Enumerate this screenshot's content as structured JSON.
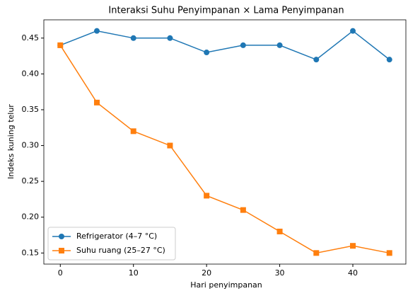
{
  "chart_data": {
    "type": "line",
    "title": "Interaksi Suhu Penyimpanan × Lama Penyimpanan",
    "x_label": "Hari penyimpanan",
    "y_label": "Indeks kuning telur",
    "x": [
      0,
      5,
      10,
      15,
      20,
      25,
      30,
      35,
      40,
      45
    ],
    "series": [
      {
        "name": "Refrigerator (4–7 °C)",
        "color": "#1f77b4",
        "marker": "circle",
        "values": [
          0.44,
          0.46,
          0.45,
          0.45,
          0.43,
          0.44,
          0.44,
          0.42,
          0.46,
          0.42
        ]
      },
      {
        "name": "Suhu ruang (25–27 °C)",
        "color": "#ff7f0e",
        "marker": "square",
        "values": [
          0.44,
          0.36,
          0.32,
          0.3,
          0.23,
          0.21,
          0.18,
          0.15,
          0.16,
          0.15
        ]
      }
    ],
    "xlim": [
      -2.25,
      47.25
    ],
    "xticks": [
      0,
      10,
      20,
      30,
      40
    ],
    "ylim": [
      0.1345,
      0.4755
    ],
    "yticks": [
      {
        "value": 0.15,
        "label": "0.15"
      },
      {
        "value": 0.2,
        "label": "0.20"
      },
      {
        "value": 0.25,
        "label": "0.25"
      },
      {
        "value": 0.3,
        "label": "0.30"
      },
      {
        "value": 0.35,
        "label": "0.35"
      },
      {
        "value": 0.4,
        "label": "0.40"
      },
      {
        "value": 0.45,
        "label": "0.45"
      }
    ],
    "legend": "lower left"
  }
}
